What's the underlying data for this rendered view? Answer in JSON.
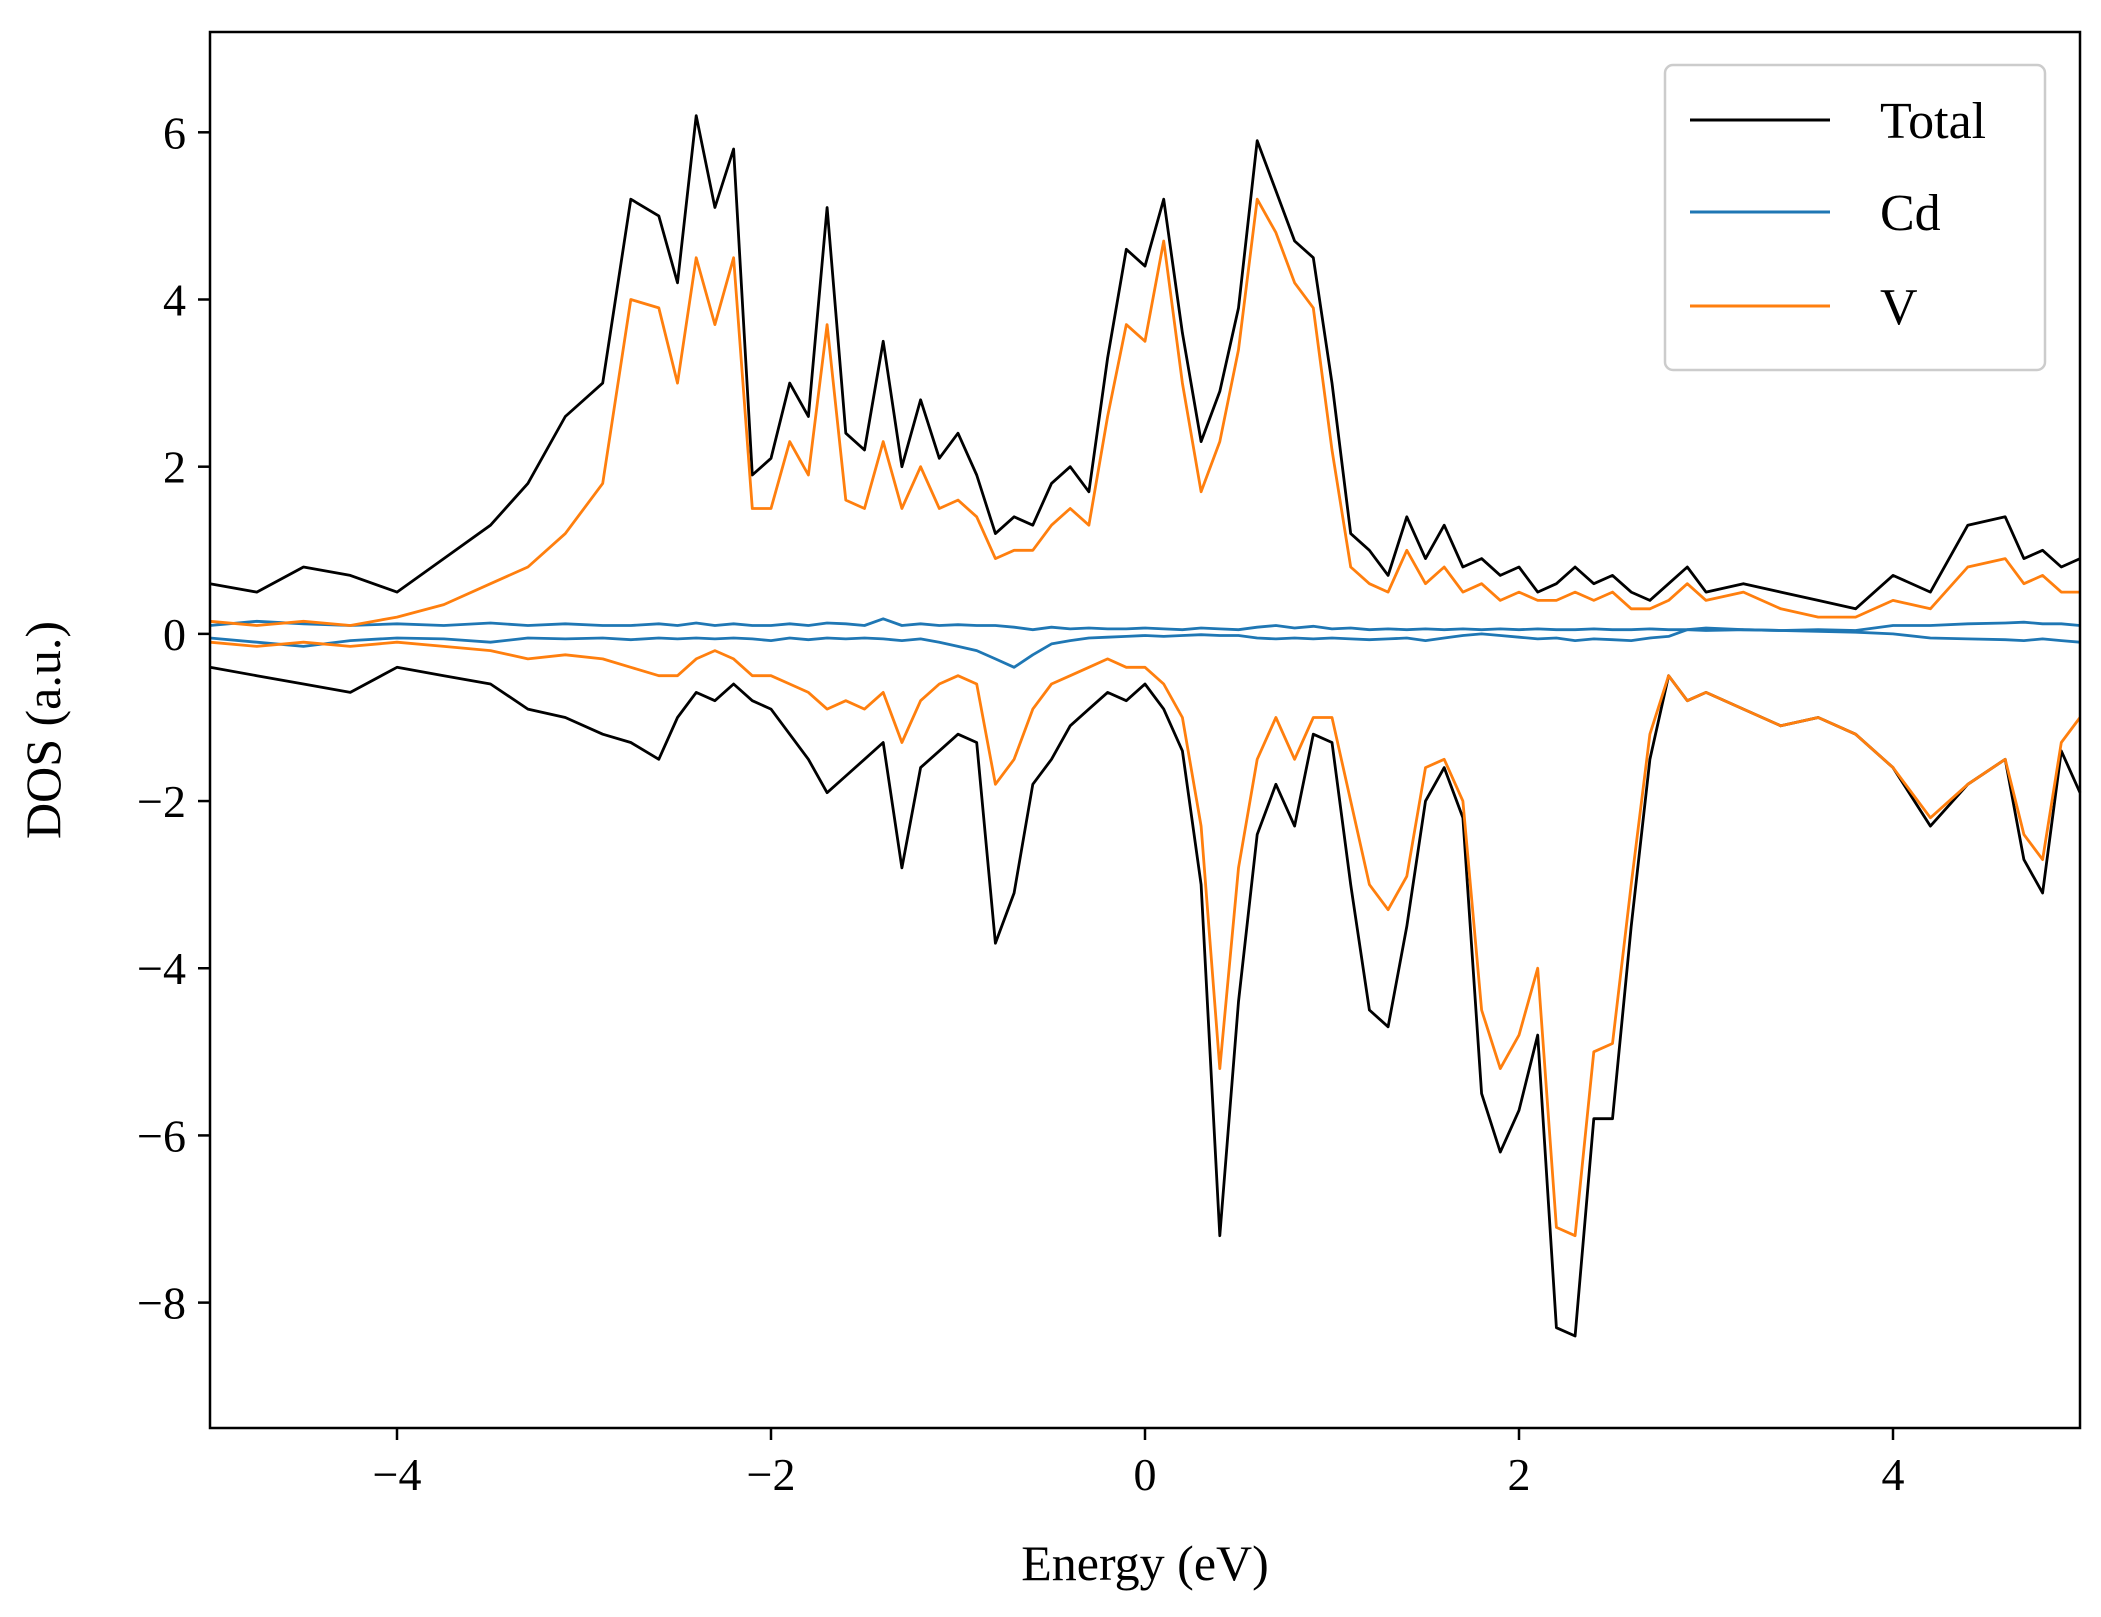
{
  "chart_data": {
    "type": "line",
    "title": "",
    "xlabel": "Energy (eV)",
    "ylabel": "DOS (a.u.)",
    "xlim": [
      -5,
      5
    ],
    "ylim": [
      -9.5,
      7.2
    ],
    "xticks": [
      -4,
      -2,
      0,
      2,
      4
    ],
    "yticks": [
      -8,
      -6,
      -4,
      -2,
      0,
      2,
      4,
      6
    ],
    "xtick_labels": [
      "−4",
      "−2",
      "0",
      "2",
      "4"
    ],
    "ytick_labels": [
      "−8",
      "−6",
      "−4",
      "−2",
      "0",
      "2",
      "4",
      "6"
    ],
    "grid": false,
    "legend_position": "top-right",
    "x": [
      -5.0,
      -4.75,
      -4.5,
      -4.25,
      -4.0,
      -3.75,
      -3.5,
      -3.3,
      -3.1,
      -2.9,
      -2.75,
      -2.6,
      -2.5,
      -2.4,
      -2.3,
      -2.2,
      -2.1,
      -2.0,
      -1.9,
      -1.8,
      -1.7,
      -1.6,
      -1.5,
      -1.4,
      -1.3,
      -1.2,
      -1.1,
      -1.0,
      -0.9,
      -0.8,
      -0.7,
      -0.6,
      -0.5,
      -0.4,
      -0.3,
      -0.2,
      -0.1,
      0.0,
      0.1,
      0.2,
      0.3,
      0.4,
      0.5,
      0.6,
      0.7,
      0.8,
      0.9,
      1.0,
      1.1,
      1.2,
      1.3,
      1.4,
      1.5,
      1.6,
      1.7,
      1.8,
      1.9,
      2.0,
      2.1,
      2.2,
      2.3,
      2.4,
      2.5,
      2.6,
      2.7,
      2.8,
      2.9,
      3.0,
      3.2,
      3.4,
      3.6,
      3.8,
      4.0,
      4.2,
      4.4,
      4.6,
      4.7,
      4.8,
      4.9,
      5.0
    ],
    "series": [
      {
        "name": "Total",
        "color": "#000000",
        "spin_up": [
          0.6,
          0.5,
          0.8,
          0.7,
          0.5,
          0.9,
          1.3,
          1.8,
          2.6,
          3.0,
          5.2,
          5.0,
          4.2,
          6.2,
          5.1,
          5.8,
          1.9,
          2.1,
          3.0,
          2.6,
          5.1,
          2.4,
          2.2,
          3.5,
          2.0,
          2.8,
          2.1,
          2.4,
          1.9,
          1.2,
          1.4,
          1.3,
          1.8,
          2.0,
          1.7,
          3.3,
          4.6,
          4.4,
          5.2,
          3.6,
          2.3,
          2.9,
          3.9,
          5.9,
          5.3,
          4.7,
          4.5,
          3.0,
          1.2,
          1.0,
          0.7,
          1.4,
          0.9,
          1.3,
          0.8,
          0.9,
          0.7,
          0.8,
          0.5,
          0.6,
          0.8,
          0.6,
          0.7,
          0.5,
          0.4,
          0.6,
          0.8,
          0.5,
          0.6,
          0.5,
          0.4,
          0.3,
          0.7,
          0.5,
          1.3,
          1.4,
          0.9,
          1.0,
          0.8,
          0.9
        ],
        "spin_down": [
          -0.4,
          -0.5,
          -0.6,
          -0.7,
          -0.4,
          -0.5,
          -0.6,
          -0.9,
          -1.0,
          -1.2,
          -1.3,
          -1.5,
          -1.0,
          -0.7,
          -0.8,
          -0.6,
          -0.8,
          -0.9,
          -1.2,
          -1.5,
          -1.9,
          -1.7,
          -1.5,
          -1.3,
          -2.8,
          -1.6,
          -1.4,
          -1.2,
          -1.3,
          -3.7,
          -3.1,
          -1.8,
          -1.5,
          -1.1,
          -0.9,
          -0.7,
          -0.8,
          -0.6,
          -0.9,
          -1.4,
          -3.0,
          -7.2,
          -4.4,
          -2.4,
          -1.8,
          -2.3,
          -1.2,
          -1.3,
          -3.0,
          -4.5,
          -4.7,
          -3.5,
          -2.0,
          -1.6,
          -2.2,
          -5.5,
          -6.2,
          -5.7,
          -4.8,
          -8.3,
          -8.4,
          -5.8,
          -5.8,
          -3.5,
          -1.5,
          -0.5,
          -0.8,
          -0.7,
          -0.9,
          -1.1,
          -1.0,
          -1.2,
          -1.6,
          -2.3,
          -1.8,
          -1.5,
          -2.7,
          -3.1,
          -1.4,
          -1.9
        ]
      },
      {
        "name": "Cd",
        "color": "#1f77b4",
        "spin_up": [
          0.1,
          0.15,
          0.12,
          0.1,
          0.12,
          0.1,
          0.13,
          0.1,
          0.12,
          0.1,
          0.1,
          0.12,
          0.1,
          0.13,
          0.1,
          0.12,
          0.1,
          0.1,
          0.12,
          0.1,
          0.13,
          0.12,
          0.1,
          0.18,
          0.1,
          0.12,
          0.1,
          0.11,
          0.1,
          0.1,
          0.08,
          0.05,
          0.08,
          0.06,
          0.07,
          0.06,
          0.06,
          0.07,
          0.06,
          0.05,
          0.07,
          0.06,
          0.05,
          0.08,
          0.1,
          0.07,
          0.09,
          0.06,
          0.07,
          0.05,
          0.06,
          0.05,
          0.06,
          0.05,
          0.06,
          0.05,
          0.06,
          0.05,
          0.06,
          0.05,
          0.05,
          0.06,
          0.05,
          0.05,
          0.06,
          0.05,
          0.05,
          0.04,
          0.05,
          0.04,
          0.05,
          0.04,
          0.1,
          0.1,
          0.12,
          0.13,
          0.14,
          0.12,
          0.12,
          0.1
        ],
        "spin_down": [
          -0.05,
          -0.1,
          -0.15,
          -0.08,
          -0.05,
          -0.06,
          -0.1,
          -0.05,
          -0.06,
          -0.05,
          -0.07,
          -0.05,
          -0.06,
          -0.05,
          -0.06,
          -0.05,
          -0.06,
          -0.08,
          -0.05,
          -0.07,
          -0.05,
          -0.06,
          -0.05,
          -0.06,
          -0.08,
          -0.06,
          -0.1,
          -0.15,
          -0.2,
          -0.3,
          -0.4,
          -0.25,
          -0.12,
          -0.08,
          -0.05,
          -0.04,
          -0.03,
          -0.02,
          -0.03,
          -0.02,
          -0.01,
          -0.02,
          -0.02,
          -0.05,
          -0.06,
          -0.05,
          -0.06,
          -0.05,
          -0.06,
          -0.07,
          -0.06,
          -0.05,
          -0.08,
          -0.05,
          -0.02,
          0.0,
          -0.02,
          -0.04,
          -0.06,
          -0.05,
          -0.08,
          -0.06,
          -0.07,
          -0.08,
          -0.05,
          -0.03,
          0.05,
          0.07,
          0.05,
          0.04,
          0.03,
          0.02,
          0.0,
          -0.05,
          -0.06,
          -0.07,
          -0.08,
          -0.06,
          -0.08,
          -0.1
        ]
      },
      {
        "name": "V",
        "color": "#ff7f0e",
        "spin_up": [
          0.15,
          0.1,
          0.15,
          0.1,
          0.2,
          0.35,
          0.6,
          0.8,
          1.2,
          1.8,
          4.0,
          3.9,
          3.0,
          4.5,
          3.7,
          4.5,
          1.5,
          1.5,
          2.3,
          1.9,
          3.7,
          1.6,
          1.5,
          2.3,
          1.5,
          2.0,
          1.5,
          1.6,
          1.4,
          0.9,
          1.0,
          1.0,
          1.3,
          1.5,
          1.3,
          2.6,
          3.7,
          3.5,
          4.7,
          3.0,
          1.7,
          2.3,
          3.4,
          5.2,
          4.8,
          4.2,
          3.9,
          2.2,
          0.8,
          0.6,
          0.5,
          1.0,
          0.6,
          0.8,
          0.5,
          0.6,
          0.4,
          0.5,
          0.4,
          0.4,
          0.5,
          0.4,
          0.5,
          0.3,
          0.3,
          0.4,
          0.6,
          0.4,
          0.5,
          0.3,
          0.2,
          0.2,
          0.4,
          0.3,
          0.8,
          0.9,
          0.6,
          0.7,
          0.5,
          0.5
        ],
        "spin_down": [
          -0.1,
          -0.15,
          -0.1,
          -0.15,
          -0.1,
          -0.15,
          -0.2,
          -0.3,
          -0.25,
          -0.3,
          -0.4,
          -0.5,
          -0.5,
          -0.3,
          -0.2,
          -0.3,
          -0.5,
          -0.5,
          -0.6,
          -0.7,
          -0.9,
          -0.8,
          -0.9,
          -0.7,
          -1.3,
          -0.8,
          -0.6,
          -0.5,
          -0.6,
          -1.8,
          -1.5,
          -0.9,
          -0.6,
          -0.5,
          -0.4,
          -0.3,
          -0.4,
          -0.4,
          -0.6,
          -1.0,
          -2.3,
          -5.2,
          -2.8,
          -1.5,
          -1.0,
          -1.5,
          -1.0,
          -1.0,
          -2.0,
          -3.0,
          -3.3,
          -2.9,
          -1.6,
          -1.5,
          -2.0,
          -4.5,
          -5.2,
          -4.8,
          -4.0,
          -7.1,
          -7.2,
          -5.0,
          -4.9,
          -3.0,
          -1.2,
          -0.5,
          -0.8,
          -0.7,
          -0.9,
          -1.1,
          -1.0,
          -1.2,
          -1.6,
          -2.2,
          -1.8,
          -1.5,
          -2.4,
          -2.7,
          -1.3,
          -1.0
        ]
      }
    ]
  }
}
